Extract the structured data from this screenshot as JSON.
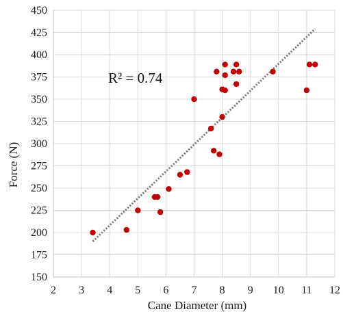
{
  "chart_data": {
    "type": "scatter",
    "xlabel": "Cane Diameter (mm)",
    "ylabel": "Force (N)",
    "xlim": [
      2,
      12
    ],
    "ylim": [
      150,
      450
    ],
    "x_ticks": [
      2,
      3,
      4,
      5,
      6,
      7,
      8,
      9,
      10,
      11,
      12
    ],
    "y_ticks": [
      150,
      175,
      200,
      225,
      250,
      275,
      300,
      325,
      350,
      375,
      400,
      425,
      450
    ],
    "grid": true,
    "point_color": "#c00000",
    "trendline": {
      "style": "dotted",
      "color": "#7f7f7f",
      "x_range": [
        3.4,
        11.3
      ],
      "y_range": [
        190,
        429
      ]
    },
    "annotation": "R² = 0.74",
    "points": [
      {
        "x": 3.4,
        "y": 200
      },
      {
        "x": 4.6,
        "y": 203
      },
      {
        "x": 5.0,
        "y": 225
      },
      {
        "x": 5.6,
        "y": 240
      },
      {
        "x": 5.7,
        "y": 240
      },
      {
        "x": 5.8,
        "y": 223
      },
      {
        "x": 6.1,
        "y": 249
      },
      {
        "x": 6.5,
        "y": 265
      },
      {
        "x": 6.75,
        "y": 268
      },
      {
        "x": 7.0,
        "y": 350
      },
      {
        "x": 7.6,
        "y": 317
      },
      {
        "x": 7.7,
        "y": 292
      },
      {
        "x": 7.8,
        "y": 381
      },
      {
        "x": 7.9,
        "y": 288
      },
      {
        "x": 8.0,
        "y": 330
      },
      {
        "x": 8.0,
        "y": 361
      },
      {
        "x": 8.1,
        "y": 360
      },
      {
        "x": 8.1,
        "y": 389
      },
      {
        "x": 8.1,
        "y": 377
      },
      {
        "x": 8.4,
        "y": 381
      },
      {
        "x": 8.5,
        "y": 389
      },
      {
        "x": 8.5,
        "y": 367
      },
      {
        "x": 8.6,
        "y": 381
      },
      {
        "x": 9.8,
        "y": 381
      },
      {
        "x": 11.0,
        "y": 360
      },
      {
        "x": 11.1,
        "y": 389
      },
      {
        "x": 11.3,
        "y": 389
      }
    ]
  }
}
